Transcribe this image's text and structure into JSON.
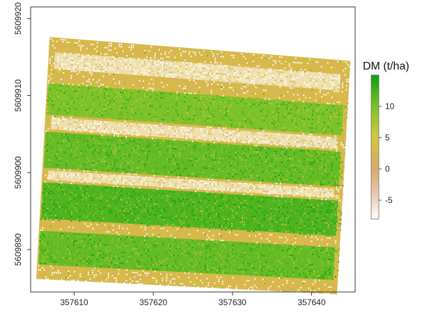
{
  "chart_data": {
    "type": "heatmap",
    "title": "",
    "xlabel": "",
    "ylabel": "",
    "xlim": [
      357604.5,
      357645.5
    ],
    "ylim": [
      5609884.5,
      5609921.5
    ],
    "x_ticks": [
      357610,
      357620,
      357630,
      357640
    ],
    "x_tick_labels": [
      "357610",
      "357620",
      "357630",
      "357640"
    ],
    "y_ticks": [
      5609890,
      5609900,
      5609910,
      5609920
    ],
    "y_tick_labels": [
      "5609890",
      "5609900",
      "5609910",
      "5609920"
    ],
    "legend": {
      "title": "DM (t/ha)",
      "placement": "right",
      "range": [
        -8,
        15
      ],
      "ticks": [
        10,
        5,
        0,
        -5
      ],
      "tick_labels": [
        "10",
        "5",
        "0",
        "-5"
      ],
      "stops": [
        {
          "value": -8,
          "color": "#ffffff"
        },
        {
          "value": -4,
          "color": "#e9c9b0"
        },
        {
          "value": 0,
          "color": "#dba86a"
        },
        {
          "value": 5,
          "color": "#d4c73d"
        },
        {
          "value": 10,
          "color": "#7cc22a"
        },
        {
          "value": 15,
          "color": "#09a012"
        }
      ]
    },
    "grid": false,
    "field": {
      "corners": [
        [
          357605.2,
          5609886.2
        ],
        [
          357643.2,
          5609884.2
        ],
        [
          357644.9,
          5609914.5
        ],
        [
          357606.9,
          5609917.6
        ]
      ],
      "background_dm": 3,
      "background_color": "#d8b84c",
      "crop_strips": [
        {
          "start": 0.19,
          "end": 0.32,
          "mean_dm": 10
        },
        {
          "start": 0.39,
          "end": 0.54,
          "mean_dm": 11
        },
        {
          "start": 0.6,
          "end": 0.75,
          "mean_dm": 12
        },
        {
          "start": 0.8,
          "end": 0.94,
          "mean_dm": 11
        }
      ],
      "gap_bands": [
        {
          "start": 0.33,
          "end": 0.38
        },
        {
          "start": 0.55,
          "end": 0.59
        },
        {
          "start": 0.06,
          "end": 0.13
        }
      ]
    }
  }
}
